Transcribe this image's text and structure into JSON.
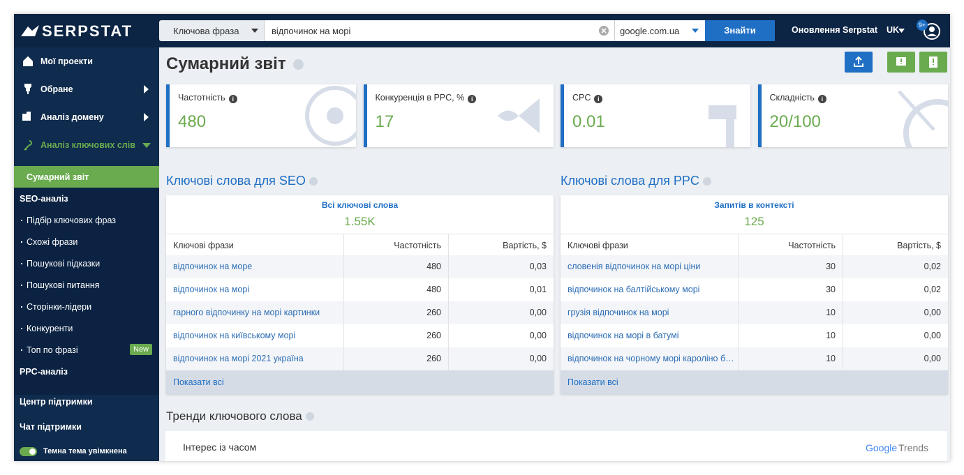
{
  "header": {
    "logo": "SERPSTAT",
    "search_type": "Ключова фраза",
    "query": "відпочинок на морі",
    "engine": "google.com.ua",
    "search_button": "Знайти",
    "updates": "Оновлення Serpstat",
    "language": "UK",
    "badge": "9+"
  },
  "sidebar": {
    "items": [
      "Мої проекти",
      "Обране",
      "Аналіз домену",
      "Аналіз ключових слів"
    ],
    "active": "Сумарний звіт",
    "seo_section": "SEO-аналіз",
    "seo_items": [
      "Підбір ключових фраз",
      "Схожі фрази",
      "Пошукові підказки",
      "Пошукові питання",
      "Сторінки-лідери",
      "Конкуренти",
      "Топ по фразі"
    ],
    "new_badge": "New",
    "ppc_section": "PPC-аналіз",
    "support_center": "Центр підтримки",
    "support_chat": "Чат підтримки",
    "dark_theme": "Темна тема увімкнена"
  },
  "page": {
    "title": "Сумарний звіт",
    "cards": [
      {
        "label": "Частотність",
        "value": "480"
      },
      {
        "label": "Конкуренція в PPC, %",
        "value": "17"
      },
      {
        "label": "CPC",
        "value": "0.01"
      },
      {
        "label": "Складність",
        "value": "20/100"
      }
    ],
    "seo": {
      "title": "Ключові слова для SEO",
      "summary_label": "Всі ключові слова",
      "summary_value": "1.55K",
      "columns": [
        "Ключові фрази",
        "Частотність",
        "Вартість, $"
      ],
      "rows": [
        [
          "відпочинок на море",
          "480",
          "0,03"
        ],
        [
          "відпочинок на морі",
          "480",
          "0,01"
        ],
        [
          "гарного відпочинку на морі картинки",
          "260",
          "0,00"
        ],
        [
          "відпочинок на київському морі",
          "260",
          "0,00"
        ],
        [
          "відпочинок на морі 2021 україна",
          "260",
          "0,00"
        ]
      ],
      "show_all": "Показати всі"
    },
    "ppc": {
      "title": "Ключові слова для PPC",
      "summary_label": "Запитів в контексті",
      "summary_value": "125",
      "columns": [
        "Ключові фрази",
        "Частотність",
        "Вартість, $"
      ],
      "rows": [
        [
          "словенія відпочинок на морі ціни",
          "30",
          "0,02"
        ],
        [
          "відпочинок на балтійському морі",
          "30",
          "0,02"
        ],
        [
          "грузія відпочинок на морі",
          "10",
          "0,00"
        ],
        [
          "відпочинок на морі в батумі",
          "10",
          "0,00"
        ],
        [
          "відпочинок на чорному морі кароліно б…",
          "10",
          "0,00"
        ]
      ],
      "show_all": "Показати всі"
    },
    "trends": {
      "title": "Тренди ключового слова",
      "subtitle": "Інтерес із часом",
      "brand_google": "Google",
      "brand_trends": "Trends"
    }
  }
}
